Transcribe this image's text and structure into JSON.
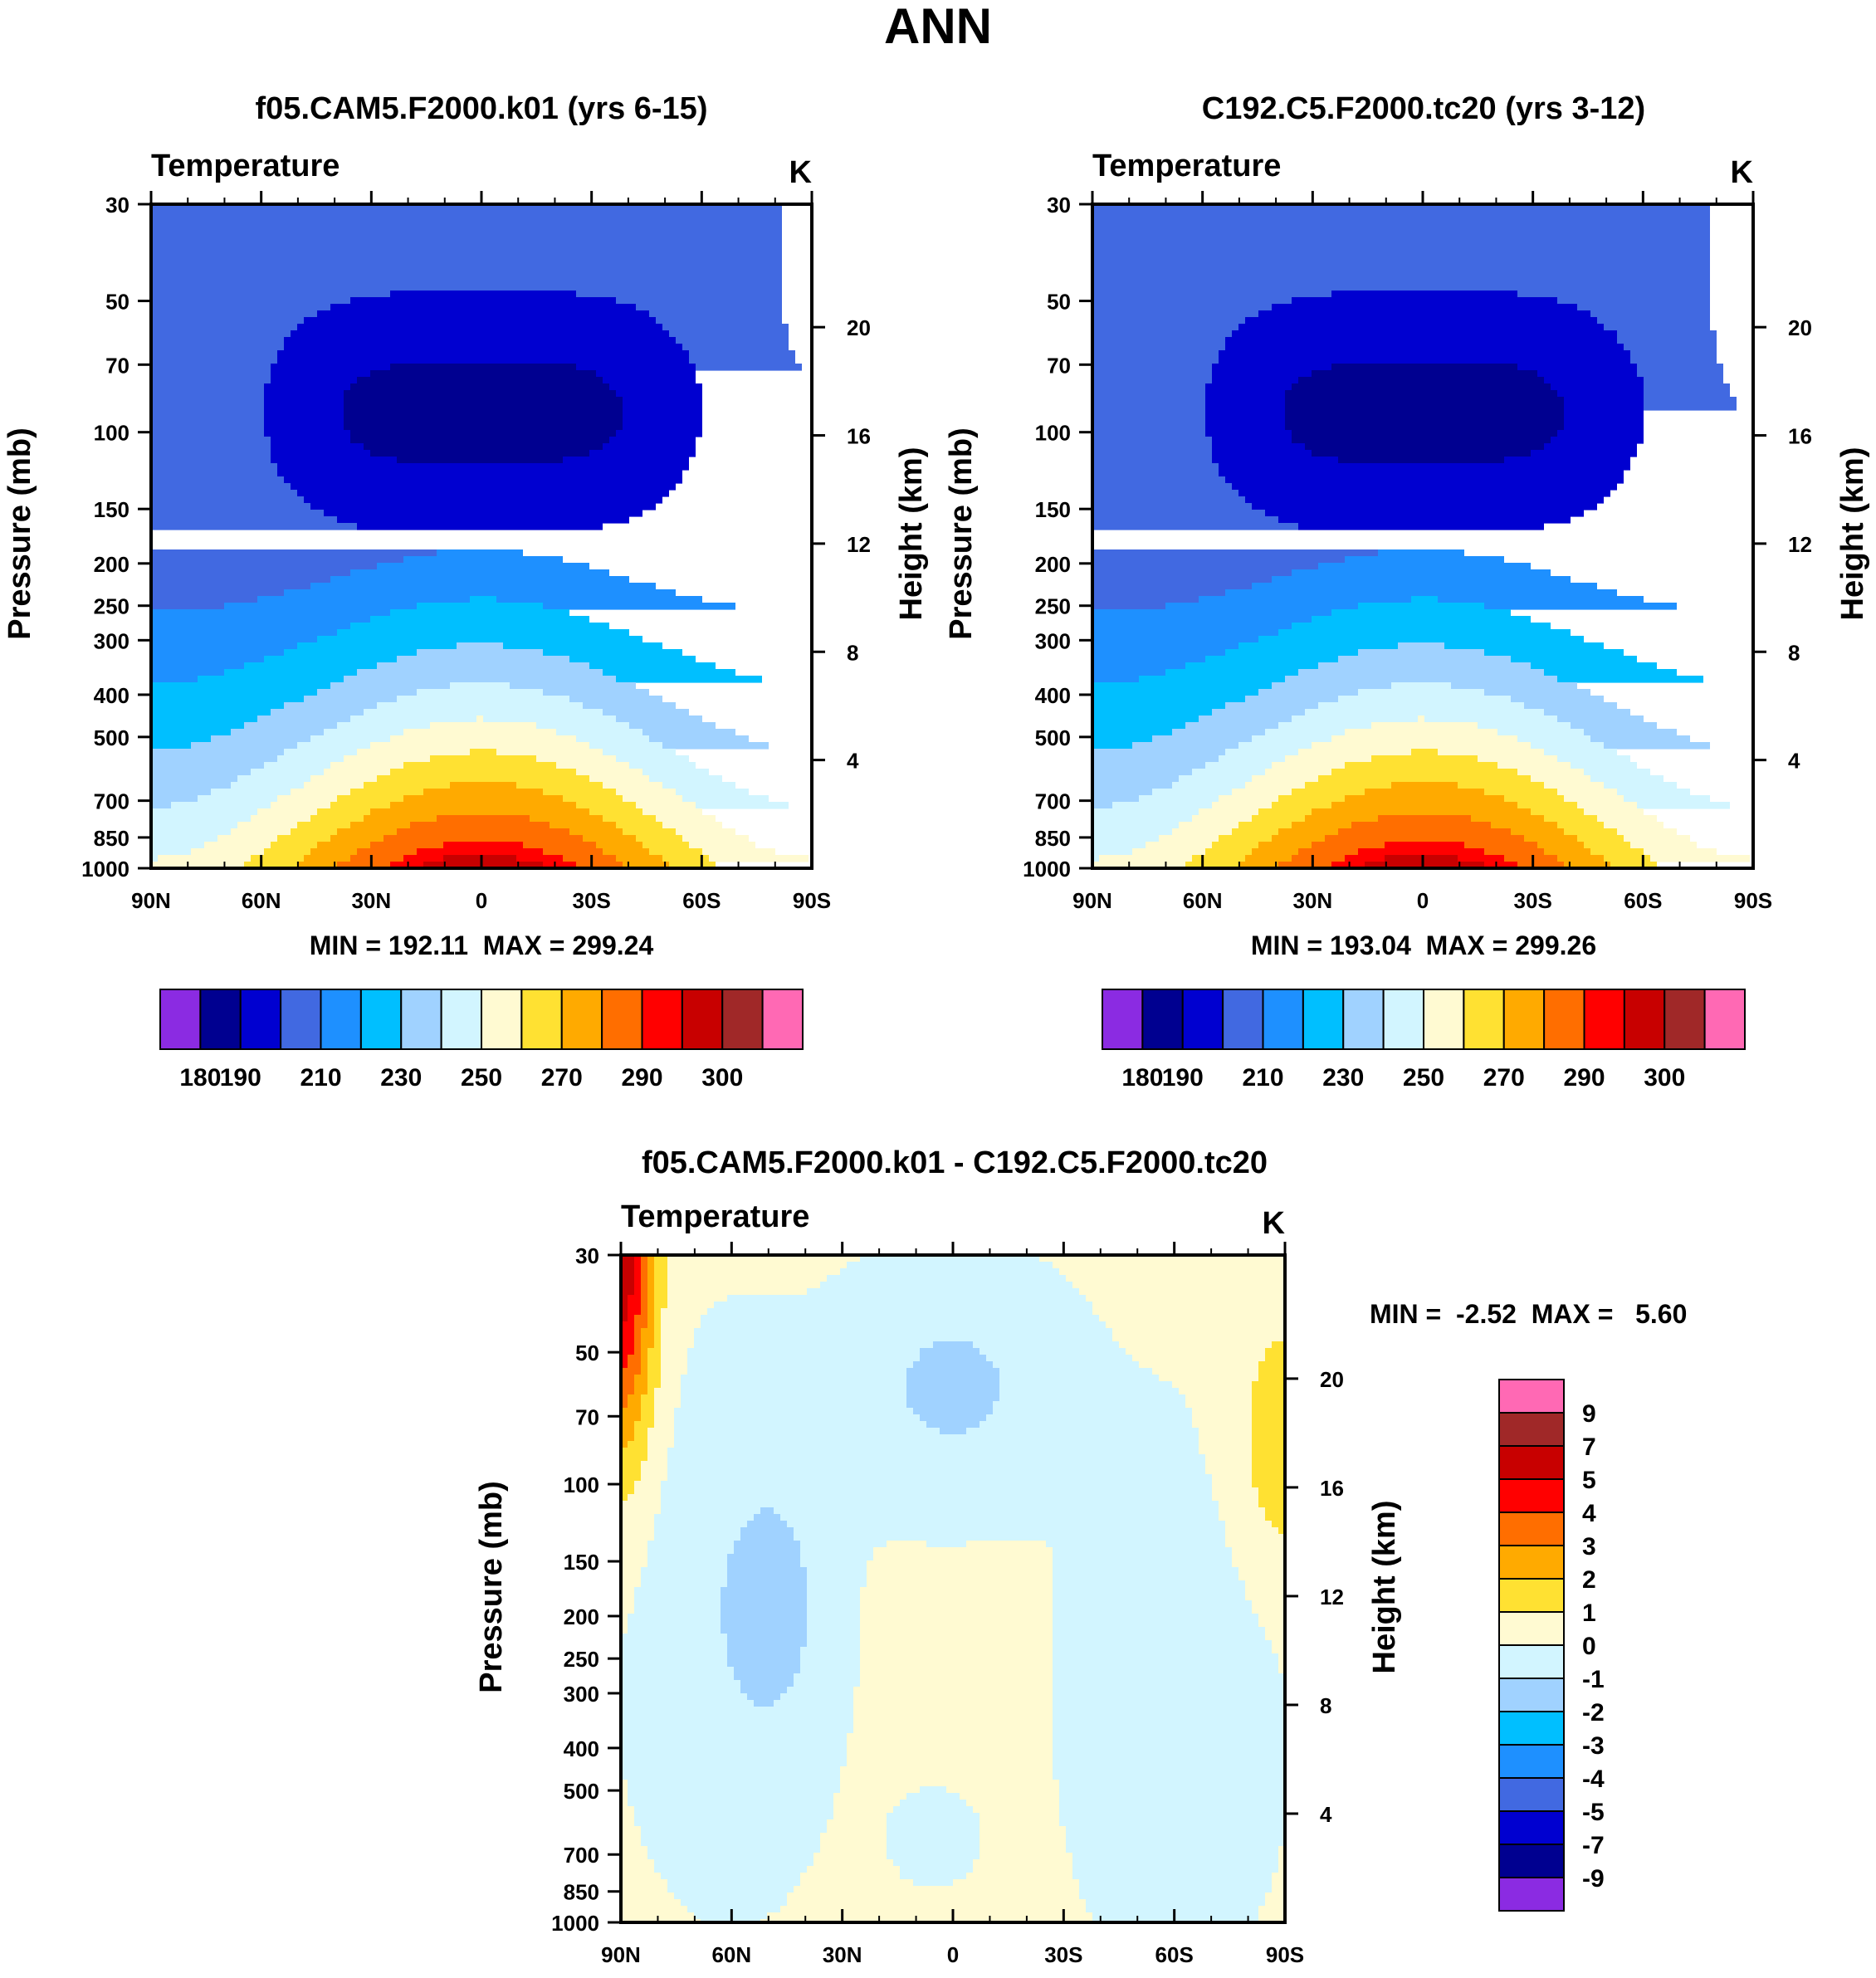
{
  "title": "ANN",
  "colors": {
    "temp_palette": [
      "#8b2be2",
      "#000090",
      "#0000d0",
      "#4169e1",
      "#1e90ff",
      "#00bfff",
      "#a0d2ff",
      "#d2f5ff",
      "#fffad2",
      "#ffe132",
      "#ffaa00",
      "#ff6e00",
      "#ff0000",
      "#c80000",
      "#a02828",
      "#ff69b4"
    ],
    "diff_palette": [
      "#8b2be2",
      "#000090",
      "#0000d0",
      "#4169e1",
      "#1e90ff",
      "#00bfff",
      "#a0d2ff",
      "#d2f5ff",
      "#fffad2",
      "#ffe132",
      "#ffaa00",
      "#ff6e00",
      "#ff0000",
      "#c80000",
      "#a02828",
      "#ff69b4"
    ]
  },
  "chart_data": [
    {
      "type": "contour",
      "title": "f05.CAM5.F2000.k01 (yrs 6-15)",
      "variable": "Temperature",
      "units": "K",
      "xlabel": "",
      "ylabel": "Pressure (mb)",
      "ylabel_right": "Height (km)",
      "x_ticks": [
        "90N",
        "60N",
        "30N",
        "0",
        "30S",
        "60S",
        "90S"
      ],
      "y_ticks": [
        30,
        50,
        70,
        100,
        150,
        200,
        250,
        300,
        400,
        500,
        700,
        850,
        1000
      ],
      "height_ticks": [
        20,
        16,
        12,
        8,
        4
      ],
      "ylim": [
        1000,
        30
      ],
      "stats": "MIN = 192.11  MAX = 299.24",
      "min": 192.11,
      "max": 299.24,
      "contour_levels": [
        180,
        190,
        200,
        210,
        220,
        230,
        240,
        250,
        260,
        270,
        280,
        290,
        295,
        300
      ],
      "colorbar_labels": [
        "180",
        "190",
        "210",
        "230",
        "250",
        "270",
        "290",
        "300"
      ]
    },
    {
      "type": "contour",
      "title": "C192.C5.F2000.tc20 (yrs 3-12)",
      "variable": "Temperature",
      "units": "K",
      "xlabel": "",
      "ylabel": "Pressure (mb)",
      "ylabel_right": "Height (km)",
      "x_ticks": [
        "90N",
        "60N",
        "30N",
        "0",
        "30S",
        "60S",
        "90S"
      ],
      "y_ticks": [
        30,
        50,
        70,
        100,
        150,
        200,
        250,
        300,
        400,
        500,
        700,
        850,
        1000
      ],
      "height_ticks": [
        20,
        16,
        12,
        8,
        4
      ],
      "ylim": [
        1000,
        30
      ],
      "stats": "MIN = 193.04  MAX = 299.26",
      "min": 193.04,
      "max": 299.26,
      "contour_levels": [
        180,
        190,
        200,
        210,
        220,
        230,
        240,
        250,
        260,
        270,
        280,
        290,
        295,
        300
      ],
      "colorbar_labels": [
        "180",
        "190",
        "210",
        "230",
        "250",
        "270",
        "290",
        "300"
      ]
    },
    {
      "type": "contour",
      "title": "f05.CAM5.F2000.k01 - C192.C5.F2000.tc20",
      "variable": "Temperature",
      "units": "K",
      "xlabel": "",
      "ylabel": "Pressure (mb)",
      "ylabel_right": "Height (km)",
      "x_ticks": [
        "90N",
        "60N",
        "30N",
        "0",
        "30S",
        "60S",
        "90S"
      ],
      "y_ticks": [
        30,
        50,
        70,
        100,
        150,
        200,
        250,
        300,
        400,
        500,
        700,
        850,
        1000
      ],
      "height_ticks": [
        20,
        16,
        12,
        8,
        4
      ],
      "ylim": [
        1000,
        30
      ],
      "stats": "MIN =  -2.52  MAX =   5.60",
      "min": -2.52,
      "max": 5.6,
      "contour_levels": [
        -9,
        -7,
        -5,
        -4,
        -3,
        -2,
        -1,
        0,
        1,
        2,
        3,
        4,
        5,
        7,
        9
      ],
      "colorbar_labels": [
        "9",
        "7",
        "5",
        "4",
        "3",
        "2",
        "1",
        "0",
        "-1",
        "-2",
        "-3",
        "-4",
        "-5",
        "-7",
        "-9"
      ]
    }
  ]
}
